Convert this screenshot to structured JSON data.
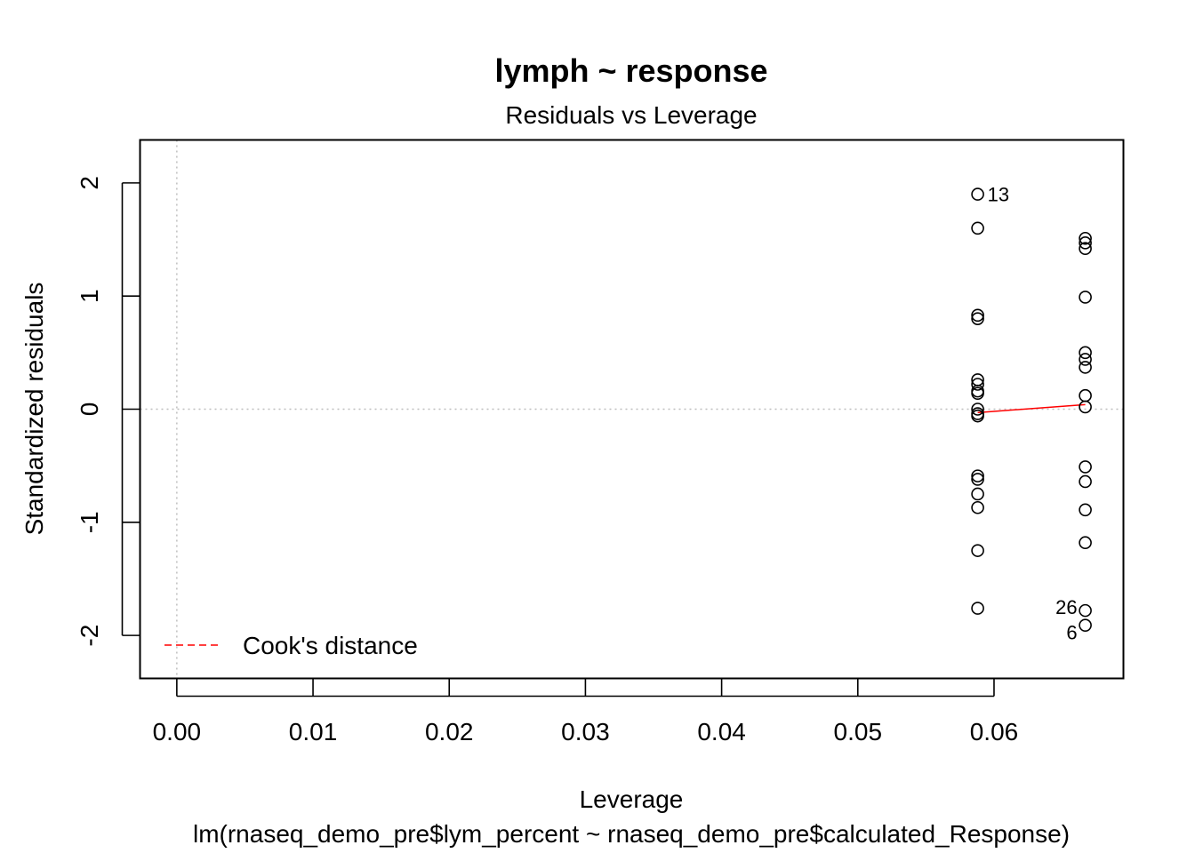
{
  "chart_data": {
    "type": "scatter",
    "title": "lymph ~ response",
    "subtitle": "Residuals vs Leverage",
    "xlabel": "Leverage",
    "ylabel": "Standardized residuals",
    "caption": "lm(rnaseq_demo_pre$lym_percent ~ rnaseq_demo_pre$calculated_Response)",
    "xlim": [
      -0.0027,
      0.0695
    ],
    "ylim": [
      -2.38,
      2.38
    ],
    "x_ticks": [
      0.0,
      0.01,
      0.02,
      0.03,
      0.04,
      0.05,
      0.06
    ],
    "x_tick_labels": [
      "0.00",
      "0.01",
      "0.02",
      "0.03",
      "0.04",
      "0.05",
      "0.06"
    ],
    "y_ticks": [
      -2,
      -1,
      0,
      1,
      2
    ],
    "y_tick_labels": [
      "-2",
      "-1",
      "0",
      "1",
      "2"
    ],
    "grid": false,
    "reference_lines": {
      "x": 0,
      "y": 0,
      "style": "dotted",
      "color": "#bebebe"
    },
    "points": [
      {
        "x": 0.0588,
        "y": 1.9,
        "label": "13"
      },
      {
        "x": 0.0588,
        "y": 1.6
      },
      {
        "x": 0.0588,
        "y": 0.83
      },
      {
        "x": 0.0588,
        "y": 0.8
      },
      {
        "x": 0.0588,
        "y": 0.26
      },
      {
        "x": 0.0588,
        "y": 0.22
      },
      {
        "x": 0.0588,
        "y": 0.16
      },
      {
        "x": 0.0588,
        "y": 0.14
      },
      {
        "x": 0.0588,
        "y": 0.0
      },
      {
        "x": 0.0588,
        "y": -0.04
      },
      {
        "x": 0.0588,
        "y": -0.06
      },
      {
        "x": 0.0588,
        "y": -0.59
      },
      {
        "x": 0.0588,
        "y": -0.62
      },
      {
        "x": 0.0588,
        "y": -0.75
      },
      {
        "x": 0.0588,
        "y": -0.87
      },
      {
        "x": 0.0588,
        "y": -1.25
      },
      {
        "x": 0.0588,
        "y": -1.76
      },
      {
        "x": 0.0667,
        "y": 1.51
      },
      {
        "x": 0.0667,
        "y": 1.47
      },
      {
        "x": 0.0667,
        "y": 1.42
      },
      {
        "x": 0.0667,
        "y": 0.99
      },
      {
        "x": 0.0667,
        "y": 0.5
      },
      {
        "x": 0.0667,
        "y": 0.44
      },
      {
        "x": 0.0667,
        "y": 0.37
      },
      {
        "x": 0.0667,
        "y": 0.12
      },
      {
        "x": 0.0667,
        "y": 0.02
      },
      {
        "x": 0.0667,
        "y": -0.51
      },
      {
        "x": 0.0667,
        "y": -0.64
      },
      {
        "x": 0.0667,
        "y": -0.89
      },
      {
        "x": 0.0667,
        "y": -1.18
      },
      {
        "x": 0.0667,
        "y": -1.78,
        "label": "26"
      },
      {
        "x": 0.0667,
        "y": -1.91,
        "label": "6"
      }
    ],
    "smooth_line": {
      "color": "#ff0000",
      "points": [
        {
          "x": 0.0588,
          "y": -0.03
        },
        {
          "x": 0.0667,
          "y": 0.04
        }
      ]
    },
    "legend": {
      "position": "bottom-left",
      "entries": [
        {
          "label": "Cook's distance",
          "color": "#ff0000",
          "style": "dashed"
        }
      ]
    }
  }
}
